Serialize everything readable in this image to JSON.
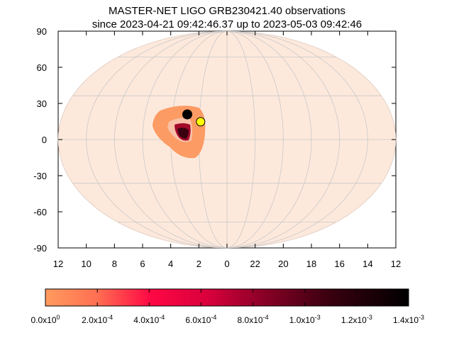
{
  "title": {
    "line1": "MASTER-NET LIGO GRB230421.40 observations",
    "line2": "since 2023-04-21 09:42:46.37 up to 2023-05-03 09:42:46"
  },
  "map": {
    "projection": "mollweide",
    "y_ticks": [
      "90",
      "60",
      "30",
      "0",
      "-30",
      "-60",
      "-90"
    ],
    "x_ticks": [
      "12",
      "10",
      "8",
      "6",
      "4",
      "2",
      "0",
      "22",
      "20",
      "18",
      "16",
      "14",
      "12"
    ],
    "background_color": "#fde9dc",
    "grid_color": "#c8c8c8",
    "probability_region_color": "#fc9b63",
    "markers": [
      {
        "name": "black-marker",
        "ra_hours": 2.9,
        "dec_deg": 17,
        "color": "#000000"
      },
      {
        "name": "yellow-marker",
        "ra_hours": 1.9,
        "dec_deg": 12,
        "color": "#ffff00"
      }
    ]
  },
  "colorbar": {
    "tick_labels": [
      {
        "mantissa": "0.0x10",
        "exp": "0"
      },
      {
        "mantissa": "2.0x10",
        "exp": "-4"
      },
      {
        "mantissa": "4.0x10",
        "exp": "-4"
      },
      {
        "mantissa": "6.0x10",
        "exp": "-4"
      },
      {
        "mantissa": "8.0x10",
        "exp": "-4"
      },
      {
        "mantissa": "1.0x10",
        "exp": "-3"
      },
      {
        "mantissa": "1.2x10",
        "exp": "-3"
      },
      {
        "mantissa": "1.4x10",
        "exp": "-3"
      }
    ],
    "range": [
      0,
      0.0014
    ],
    "colors": [
      "#ff9b5e",
      "#ff4a48",
      "#ff0844",
      "#c80036",
      "#7a0022",
      "#2a000a",
      "#000000"
    ]
  }
}
